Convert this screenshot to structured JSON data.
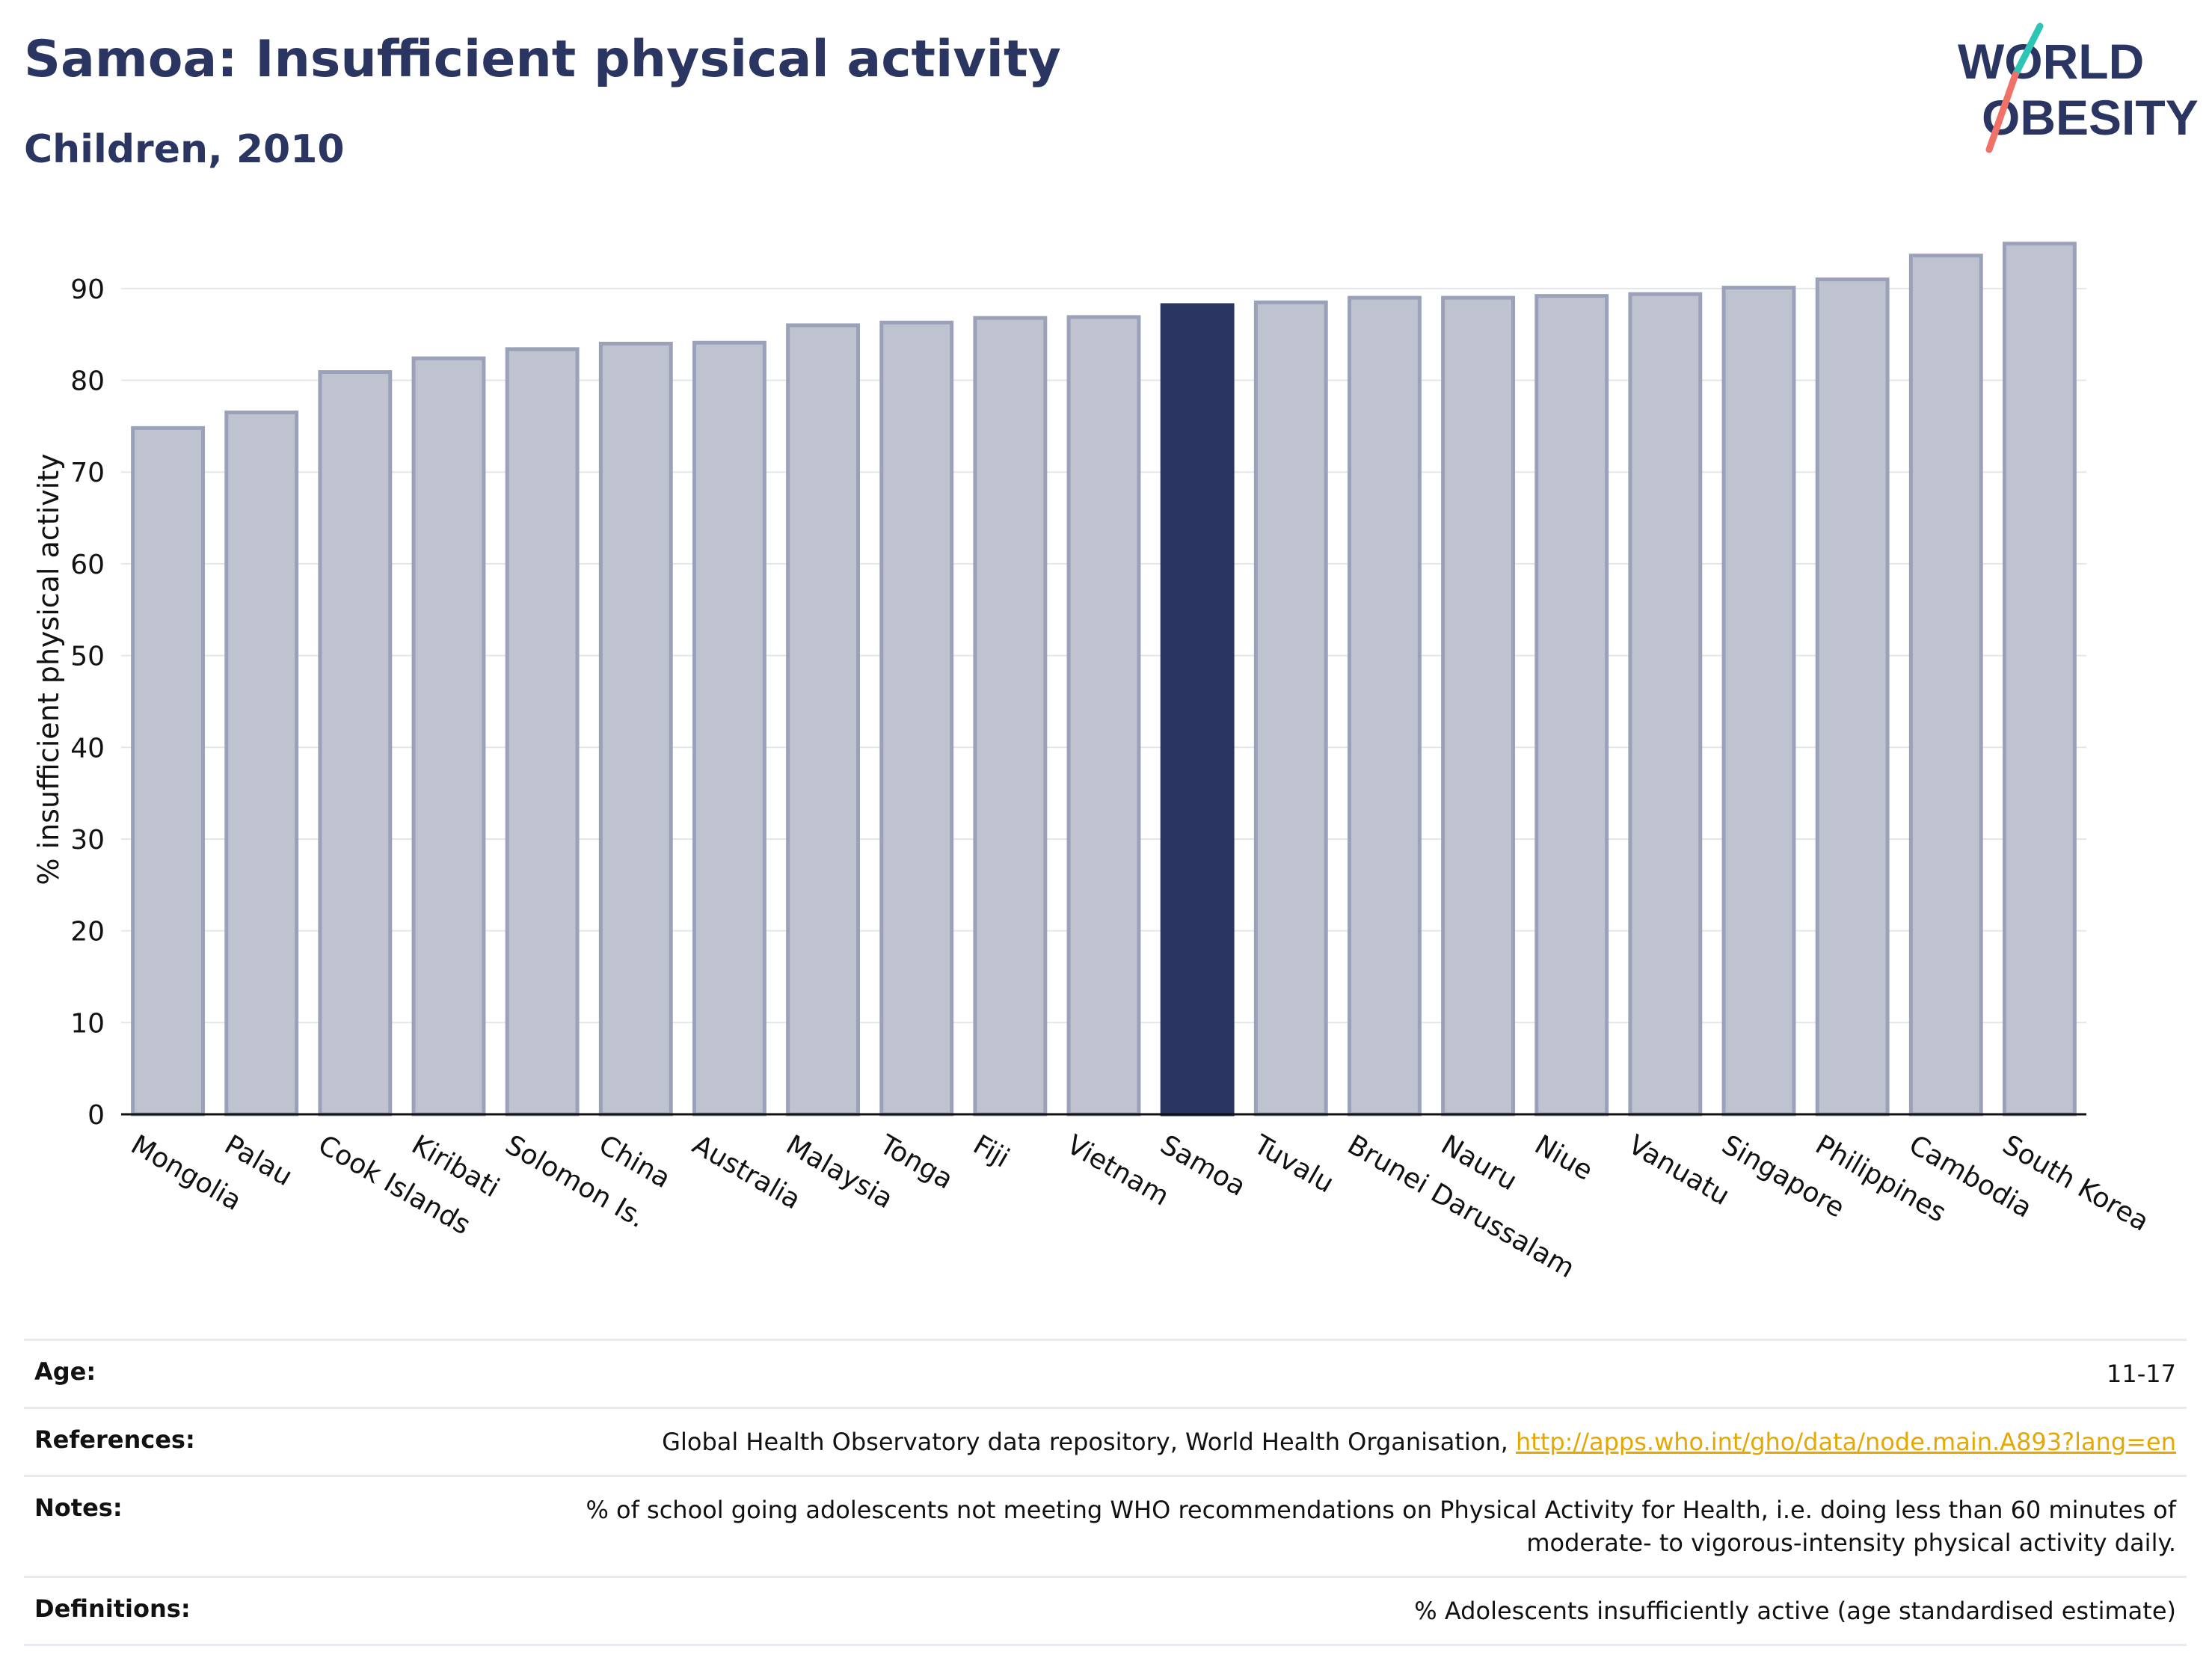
{
  "header": {
    "title": "Samoa: Insufficient physical activity",
    "subtitle": "Children, 2010"
  },
  "logo": {
    "line1": "WORLD",
    "line2": "OBESITY"
  },
  "colors": {
    "bar": "#bfc3d0",
    "bar_border": "#9aa1b8",
    "highlight": "#2b3561",
    "grid": "#e4e6ec",
    "logo_text": "#2b3561",
    "logo_teal": "#2ec4b6",
    "logo_coral": "#f07167"
  },
  "chart_data": {
    "type": "bar",
    "title": "Samoa: Insufficient physical activity",
    "subtitle": "Children, 2010",
    "xlabel": "",
    "ylabel": "% insufficient physical activity",
    "ylim": [
      0,
      97
    ],
    "yticks": [
      0,
      10,
      20,
      30,
      40,
      50,
      60,
      70,
      80,
      90
    ],
    "grid": true,
    "highlight": "Samoa",
    "categories": [
      "Mongolia",
      "Palau",
      "Cook Islands",
      "Kiribati",
      "Solomon Is.",
      "China",
      "Australia",
      "Malaysia",
      "Tonga",
      "Fiji",
      "Vietnam",
      "Samoa",
      "Tuvalu",
      "Brunei Darussalam",
      "Nauru",
      "Niue",
      "Vanuatu",
      "Singapore",
      "Philippines",
      "Cambodia",
      "South Korea"
    ],
    "values": [
      74.8,
      76.5,
      80.9,
      82.4,
      83.4,
      84.0,
      84.1,
      86.0,
      86.3,
      86.8,
      86.9,
      88.2,
      88.5,
      89.0,
      89.0,
      89.2,
      89.4,
      90.1,
      91.0,
      93.6,
      94.9
    ]
  },
  "meta": {
    "age_label": "Age:",
    "age_value": "11-17",
    "references_label": "References:",
    "references_text": "Global Health Observatory data repository, World Health Organisation, ",
    "references_link": "http://apps.who.int/gho/data/node.main.A893?lang=en",
    "notes_label": "Notes:",
    "notes_line1": "% of school going adolescents not meeting WHO recommendations on Physical Activity for Health, i.e. doing less than 60 minutes of",
    "notes_line2": "moderate- to vigorous-intensity physical activity daily.",
    "definitions_label": "Definitions:",
    "definitions_value": "% Adolescents insufficiently active (age standardised estimate)"
  }
}
